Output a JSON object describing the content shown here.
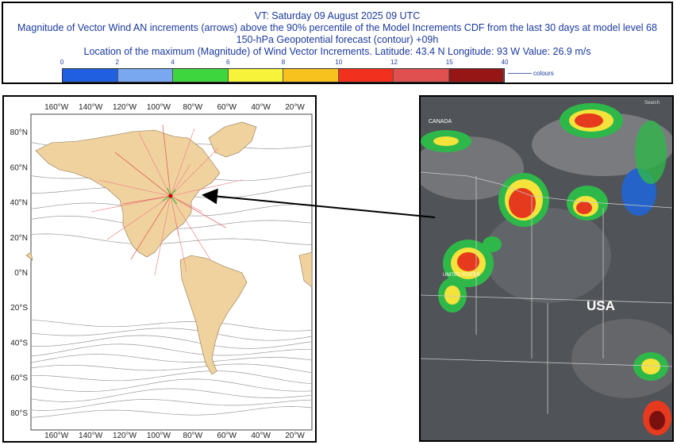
{
  "header": {
    "line1": "VT: Saturday 09 August 2025 09 UTC",
    "line2": "Magnitude of Vector Wind AN increments (arrows) above the 90% percentile of the Model Increments CDF from the last 30 days at model level 68",
    "line3": "150-hPa Geopotential forecast (contour) +09h",
    "line4": "Location of the maximum (Magnitude) of Wind Vector Increments. Latitude: 43.4 N Longitude: 93 W Value: 26.9 m/s"
  },
  "colorbar": {
    "ticks": [
      "0",
      "2",
      "4",
      "6",
      "8",
      "10",
      "12",
      "15",
      "40"
    ],
    "colors": [
      "#1f5fe0",
      "#7aa8f0",
      "#3ed63e",
      "#f7f23a",
      "#f7c21e",
      "#f2301e",
      "#e05050",
      "#961616"
    ],
    "legend_label": "colours"
  },
  "chart_data": {
    "type": "map",
    "max_location": {
      "lat": 43.4,
      "lon": -93,
      "value_ms": 26.9
    },
    "x_tick_labels": [
      "160°W",
      "140°W",
      "120°W",
      "100°W",
      "80°W",
      "60°W",
      "40°W",
      "20°W"
    ],
    "x_tick_values": [
      -160,
      -140,
      -120,
      -100,
      -80,
      -60,
      -40,
      -20
    ],
    "y_tick_labels": [
      "80°N",
      "60°N",
      "40°N",
      "20°N",
      "0°N",
      "20°S",
      "40°S",
      "60°S",
      "80°S"
    ],
    "y_tick_values": [
      80,
      60,
      40,
      20,
      0,
      -20,
      -40,
      -60,
      -80
    ],
    "xlim": [
      -175,
      -10
    ],
    "ylim": [
      -90,
      90
    ],
    "contour_levels_deg": [
      72,
      55,
      46,
      36,
      28,
      18,
      -30,
      -35,
      -40,
      -45,
      -50,
      -55,
      -60,
      -65,
      -70,
      -75,
      -80
    ]
  },
  "satellite": {
    "country_label": "USA",
    "canada_label": "CANADA",
    "us_label": "UNITED STATES",
    "search_label": "Search"
  }
}
